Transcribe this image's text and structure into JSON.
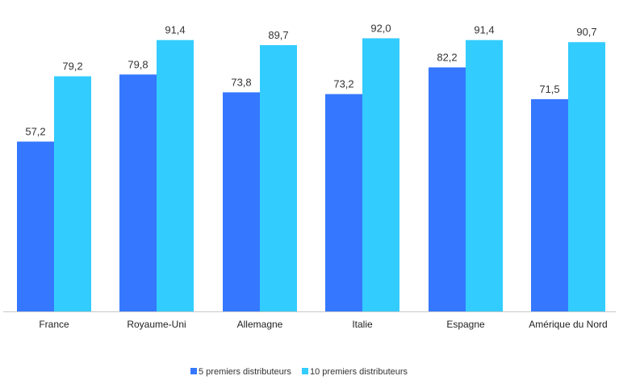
{
  "chart_data": {
    "type": "bar",
    "title": "",
    "xlabel": "",
    "ylabel": "",
    "ylim": [
      0,
      100
    ],
    "grid": false,
    "legend_position": "bottom-center",
    "categories": [
      "France",
      "Royaume-Uni",
      "Allemagne",
      "Italie",
      "Espagne",
      "Amérique du Nord"
    ],
    "series": [
      {
        "name": "5 premiers distributeurs",
        "color": "#3578ff",
        "values": [
          57.2,
          79.8,
          73.8,
          73.2,
          82.2,
          71.5
        ],
        "labels": [
          "57,2",
          "79,8",
          "73,8",
          "73,2",
          "82,2",
          "71,5"
        ]
      },
      {
        "name": "10 premiers distributeurs",
        "color": "#33ccff",
        "values": [
          79.2,
          91.4,
          89.7,
          92.0,
          91.4,
          90.7
        ],
        "labels": [
          "79,2",
          "91,4",
          "89,7",
          "92,0",
          "91,4",
          "90,7"
        ]
      }
    ]
  },
  "colors": {
    "axis": "#c8c8c8",
    "label_text": "#333333"
  }
}
